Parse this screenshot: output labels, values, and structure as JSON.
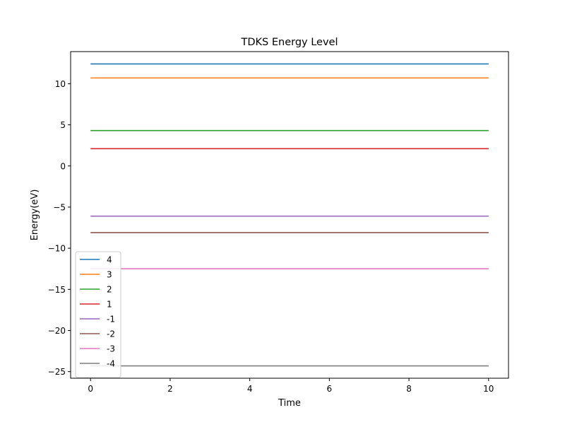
{
  "chart_data": {
    "type": "line",
    "title": "TDKS Energy Level",
    "xlabel": "Time",
    "ylabel": "Energy(eV)",
    "xlim": [
      -0.5,
      10.5
    ],
    "ylim": [
      -25.8,
      13.9
    ],
    "xticks": [
      0,
      2,
      4,
      6,
      8,
      10
    ],
    "xtick_labels": [
      "0",
      "2",
      "4",
      "6",
      "8",
      "10"
    ],
    "yticks": [
      -25,
      -20,
      -15,
      -10,
      -5,
      0,
      5,
      10
    ],
    "ytick_labels": [
      "−25",
      "−20",
      "−15",
      "−10",
      "−5",
      "0",
      "5",
      "10"
    ],
    "grid": false,
    "legend_position": "lower-left",
    "x": [
      0,
      10
    ],
    "series": [
      {
        "name": "4",
        "color": "#1f77b4",
        "values": [
          12.4,
          12.4
        ]
      },
      {
        "name": "3",
        "color": "#ff7f0e",
        "values": [
          10.7,
          10.7
        ]
      },
      {
        "name": "2",
        "color": "#2ca02c",
        "values": [
          4.3,
          4.3
        ]
      },
      {
        "name": "1",
        "color": "#d62728",
        "values": [
          2.1,
          2.1
        ]
      },
      {
        "name": "-1",
        "color": "#9467bd",
        "values": [
          -6.1,
          -6.1
        ]
      },
      {
        "name": "-2",
        "color": "#8c564b",
        "values": [
          -8.1,
          -8.1
        ]
      },
      {
        "name": "-3",
        "color": "#e377c2",
        "values": [
          -12.5,
          -12.5
        ]
      },
      {
        "name": "-4",
        "color": "#7f7f7f",
        "values": [
          -24.3,
          -24.3
        ]
      }
    ]
  }
}
